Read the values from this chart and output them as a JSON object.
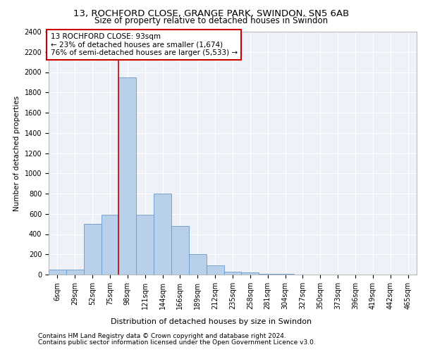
{
  "title_line1": "13, ROCHFORD CLOSE, GRANGE PARK, SWINDON, SN5 6AB",
  "title_line2": "Size of property relative to detached houses in Swindon",
  "xlabel": "Distribution of detached houses by size in Swindon",
  "ylabel": "Number of detached properties",
  "footnote1": "Contains HM Land Registry data © Crown copyright and database right 2024.",
  "footnote2": "Contains public sector information licensed under the Open Government Licence v3.0.",
  "annotation_line1": "13 ROCHFORD CLOSE: 93sqm",
  "annotation_line2": "← 23% of detached houses are smaller (1,674)",
  "annotation_line3": "76% of semi-detached houses are larger (5,533) →",
  "bar_color": "#b8d0ea",
  "bar_edge_color": "#6699cc",
  "vline_color": "#cc0000",
  "vline_x": 3.5,
  "annotation_box_color": "#cc0000",
  "categories": [
    "6sqm",
    "29sqm",
    "52sqm",
    "75sqm",
    "98sqm",
    "121sqm",
    "144sqm",
    "166sqm",
    "189sqm",
    "212sqm",
    "235sqm",
    "258sqm",
    "281sqm",
    "304sqm",
    "327sqm",
    "350sqm",
    "373sqm",
    "396sqm",
    "419sqm",
    "442sqm",
    "465sqm"
  ],
  "values": [
    50,
    50,
    500,
    590,
    1950,
    590,
    800,
    480,
    200,
    90,
    30,
    20,
    5,
    5,
    0,
    0,
    0,
    0,
    0,
    0,
    0
  ],
  "ylim": [
    0,
    2400
  ],
  "yticks": [
    0,
    200,
    400,
    600,
    800,
    1000,
    1200,
    1400,
    1600,
    1800,
    2000,
    2200,
    2400
  ],
  "background_color": "#eef2f8",
  "grid_color": "#ffffff",
  "fig_bg": "#ffffff",
  "title_fontsize": 9.5,
  "subtitle_fontsize": 8.5,
  "tick_fontsize": 7,
  "ylabel_fontsize": 7.5,
  "xlabel_fontsize": 8,
  "annotation_fontsize": 7.5,
  "footnote_fontsize": 6.5
}
